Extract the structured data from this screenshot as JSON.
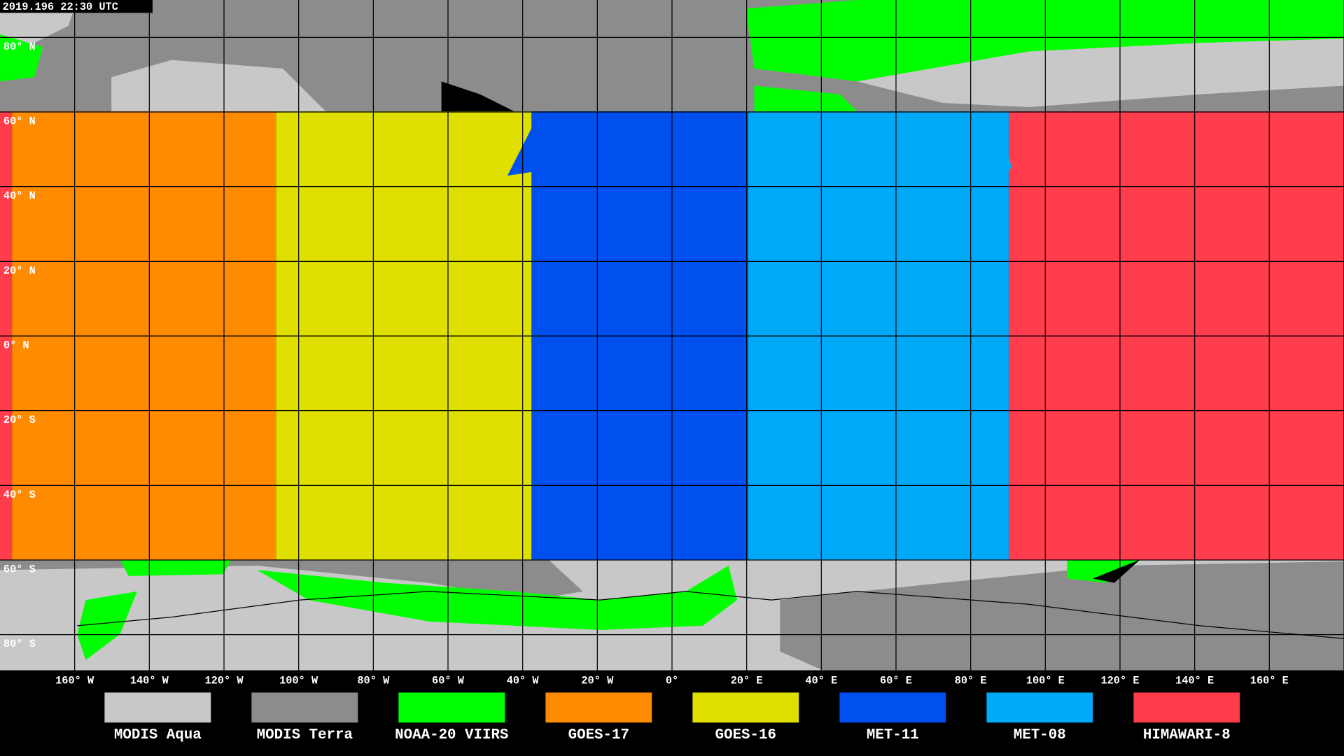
{
  "timestamp": "2019.196 22:30 UTC",
  "lat_labels": [
    "80° N",
    "60° N",
    "40° N",
    "20° N",
    "0° N",
    "20° S",
    "40° S",
    "60° S",
    "80° S"
  ],
  "lon_labels": [
    "160° W",
    "140° W",
    "120° W",
    "100° W",
    "80° W",
    "60° W",
    "40° W",
    "20° W",
    "0°",
    "20° E",
    "40° E",
    "60° E",
    "80° E",
    "100° E",
    "120° E",
    "140° E",
    "160° E"
  ],
  "legend": [
    {
      "name": "MODIS Aqua",
      "color": "#c8c8c8"
    },
    {
      "name": "MODIS Terra",
      "color": "#8c8c8c"
    },
    {
      "name": "NOAA-20 VIIRS",
      "color": "#00ff00"
    },
    {
      "name": "GOES-17",
      "color": "#ff8c00"
    },
    {
      "name": "GOES-16",
      "color": "#e0e000"
    },
    {
      "name": "MET-11",
      "color": "#0050f0"
    },
    {
      "name": "MET-08",
      "color": "#00aaf8"
    },
    {
      "name": "HIMAWARI-8",
      "color": "#ff3c4b"
    }
  ]
}
